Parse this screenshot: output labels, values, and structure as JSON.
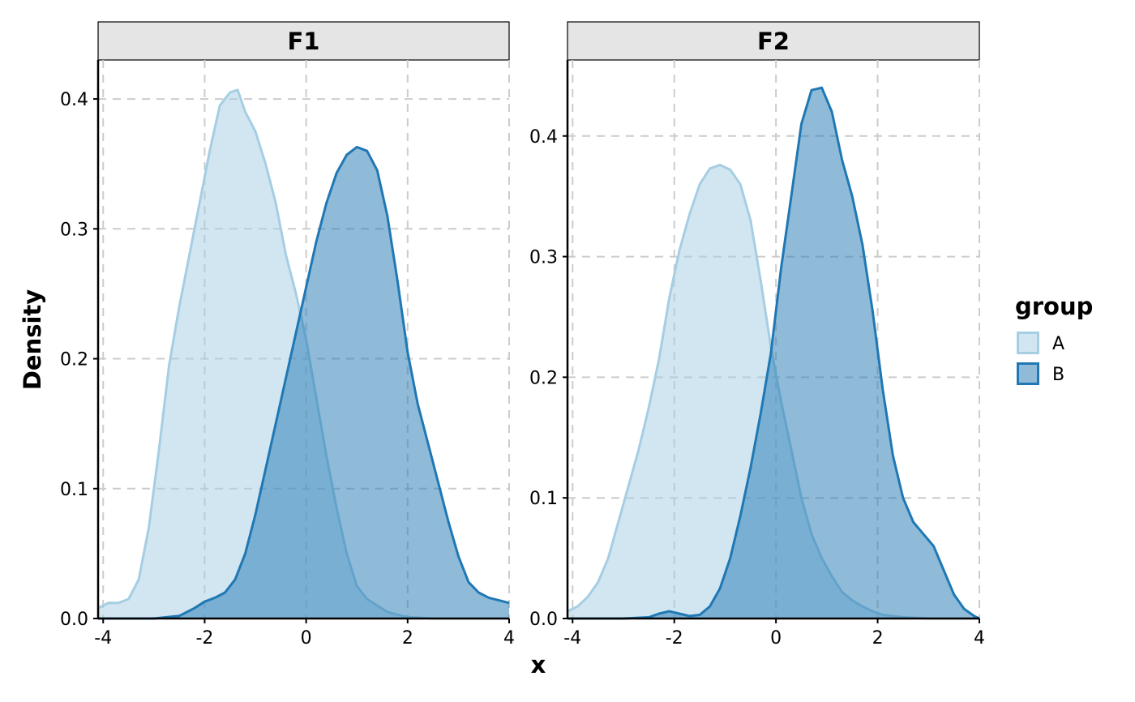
{
  "chart_data": {
    "type": "area",
    "xlabel": "x",
    "ylabel": "Density",
    "legend": {
      "title": "group",
      "placement": "right",
      "entries": [
        {
          "name": "A",
          "fill": "#a6cee3",
          "fill_opacity": 0.5,
          "stroke": "#a6cee3"
        },
        {
          "name": "B",
          "fill": "#1f78b4",
          "fill_opacity": 0.5,
          "stroke": "#1f78b4"
        }
      ]
    },
    "grid": true,
    "panels": [
      {
        "title": "F1",
        "xlim": [
          -4.1,
          4
        ],
        "ylim": [
          0,
          0.43
        ],
        "x_ticks": [
          -4,
          -2,
          0,
          2,
          4
        ],
        "x_tick_labels": [
          "-4",
          "-2",
          "0",
          "2",
          "4"
        ],
        "y_ticks": [
          0,
          0.1,
          0.2,
          0.3,
          0.4
        ],
        "y_tick_labels": [
          "0.0",
          "0.1",
          "0.2",
          "0.3",
          "0.4"
        ],
        "series": [
          {
            "name": "A",
            "x": [
              -4.1,
              -3.9,
              -3.7,
              -3.5,
              -3.3,
              -3.1,
              -2.9,
              -2.7,
              -2.5,
              -2.3,
              -2.1,
              -1.9,
              -1.7,
              -1.5,
              -1.35,
              -1.2,
              -1.0,
              -0.8,
              -0.6,
              -0.4,
              -0.2,
              0.0,
              0.2,
              0.4,
              0.6,
              0.8,
              1.0,
              1.2,
              1.4,
              1.6,
              1.8,
              2.0,
              2.5,
              3.0,
              3.5,
              4.0
            ],
            "y": [
              0.008,
              0.012,
              0.012,
              0.015,
              0.03,
              0.07,
              0.13,
              0.195,
              0.24,
              0.28,
              0.32,
              0.36,
              0.395,
              0.405,
              0.407,
              0.39,
              0.375,
              0.35,
              0.32,
              0.28,
              0.25,
              0.215,
              0.17,
              0.125,
              0.085,
              0.05,
              0.025,
              0.015,
              0.01,
              0.005,
              0.003,
              0.001,
              0.0,
              0.0,
              0.0,
              0.0
            ]
          },
          {
            "name": "B",
            "x": [
              -4.1,
              -3.5,
              -3.0,
              -2.5,
              -2.2,
              -2.0,
              -1.8,
              -1.6,
              -1.4,
              -1.2,
              -1.0,
              -0.8,
              -0.6,
              -0.4,
              -0.2,
              0.0,
              0.2,
              0.4,
              0.6,
              0.8,
              1.0,
              1.2,
              1.4,
              1.6,
              1.8,
              2.0,
              2.2,
              2.4,
              2.6,
              2.8,
              3.0,
              3.2,
              3.4,
              3.6,
              3.8,
              4.0
            ],
            "y": [
              0.0,
              0.0,
              0.0,
              0.002,
              0.008,
              0.013,
              0.016,
              0.02,
              0.03,
              0.05,
              0.08,
              0.115,
              0.15,
              0.185,
              0.22,
              0.255,
              0.29,
              0.32,
              0.343,
              0.357,
              0.363,
              0.36,
              0.345,
              0.31,
              0.26,
              0.205,
              0.165,
              0.135,
              0.105,
              0.075,
              0.048,
              0.028,
              0.02,
              0.016,
              0.014,
              0.012
            ]
          }
        ]
      },
      {
        "title": "F2",
        "xlim": [
          -4.1,
          4
        ],
        "ylim": [
          0,
          0.463
        ],
        "x_ticks": [
          -4,
          -2,
          0,
          2,
          4
        ],
        "x_tick_labels": [
          "-4",
          "-2",
          "0",
          "2",
          "4"
        ],
        "y_ticks": [
          0,
          0.1,
          0.2,
          0.3,
          0.4
        ],
        "y_tick_labels": [
          "0.0",
          "0.1",
          "0.2",
          "0.3",
          "0.4"
        ],
        "series": [
          {
            "name": "A",
            "x": [
              -4.1,
              -3.9,
              -3.7,
              -3.5,
              -3.3,
              -3.1,
              -2.9,
              -2.7,
              -2.5,
              -2.3,
              -2.1,
              -1.9,
              -1.7,
              -1.5,
              -1.3,
              -1.1,
              -0.9,
              -0.7,
              -0.5,
              -0.3,
              -0.1,
              0.1,
              0.3,
              0.5,
              0.7,
              0.9,
              1.1,
              1.3,
              1.5,
              1.7,
              1.9,
              2.1,
              2.5,
              3.0,
              3.5,
              4.0
            ],
            "y": [
              0.006,
              0.01,
              0.018,
              0.03,
              0.05,
              0.08,
              0.11,
              0.14,
              0.175,
              0.215,
              0.265,
              0.305,
              0.335,
              0.36,
              0.373,
              0.376,
              0.372,
              0.36,
              0.33,
              0.28,
              0.225,
              0.18,
              0.14,
              0.1,
              0.07,
              0.05,
              0.035,
              0.022,
              0.015,
              0.01,
              0.006,
              0.003,
              0.001,
              0.0,
              0.0,
              0.0
            ]
          },
          {
            "name": "B",
            "x": [
              -4.1,
              -3.0,
              -2.5,
              -2.3,
              -2.1,
              -1.9,
              -1.7,
              -1.5,
              -1.3,
              -1.1,
              -0.9,
              -0.7,
              -0.5,
              -0.3,
              -0.1,
              0.1,
              0.3,
              0.5,
              0.7,
              0.9,
              1.1,
              1.3,
              1.5,
              1.7,
              1.9,
              2.1,
              2.3,
              2.5,
              2.7,
              2.9,
              3.1,
              3.3,
              3.5,
              3.7,
              3.9,
              4.0
            ],
            "y": [
              0.0,
              0.0,
              0.001,
              0.004,
              0.006,
              0.004,
              0.002,
              0.003,
              0.01,
              0.025,
              0.05,
              0.085,
              0.125,
              0.17,
              0.22,
              0.29,
              0.35,
              0.41,
              0.438,
              0.44,
              0.42,
              0.38,
              0.35,
              0.31,
              0.255,
              0.19,
              0.135,
              0.1,
              0.08,
              0.07,
              0.06,
              0.04,
              0.02,
              0.008,
              0.002,
              0.0
            ]
          }
        ]
      }
    ]
  }
}
